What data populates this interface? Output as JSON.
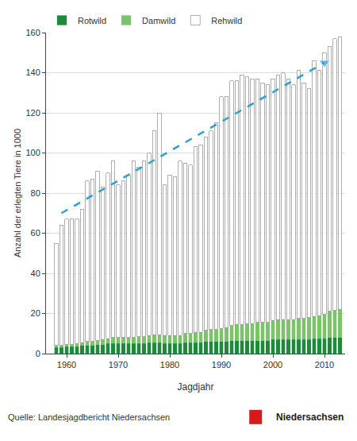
{
  "chart_data": {
    "type": "bar",
    "stacked": true,
    "x_label": "Jagdjahr",
    "y_label": "Anzahl der erlegten Tiere in 1000",
    "x": [
      1958,
      1959,
      1960,
      1961,
      1962,
      1963,
      1964,
      1965,
      1966,
      1967,
      1968,
      1969,
      1970,
      1971,
      1972,
      1973,
      1974,
      1975,
      1976,
      1977,
      1978,
      1979,
      1980,
      1981,
      1982,
      1983,
      1984,
      1985,
      1986,
      1987,
      1988,
      1989,
      1990,
      1991,
      1992,
      1993,
      1994,
      1995,
      1996,
      1997,
      1998,
      1999,
      2000,
      2001,
      2002,
      2003,
      2004,
      2005,
      2006,
      2007,
      2008,
      2009,
      2010,
      2011,
      2012,
      2013
    ],
    "series": [
      {
        "name": "Rotwild",
        "color": "#1e8a3c",
        "values": [
          3,
          3,
          3.5,
          3.5,
          3.5,
          4,
          4,
          4,
          4.5,
          4.5,
          5,
          5,
          5,
          5,
          5,
          5,
          5,
          5,
          5.5,
          5.5,
          5.5,
          5,
          5,
          5,
          5,
          5.5,
          5.5,
          5.5,
          5.5,
          6,
          6,
          6,
          6,
          6,
          6.5,
          6.5,
          6.5,
          6.5,
          6.5,
          6.5,
          6.5,
          6.5,
          7,
          7,
          7,
          7,
          7,
          7,
          7,
          7,
          7.5,
          7.5,
          7.5,
          8,
          8,
          8
        ]
      },
      {
        "name": "Damwild",
        "color": "#7dc36b",
        "values": [
          1,
          1,
          1,
          1,
          1.5,
          1.5,
          2,
          2,
          2,
          2.5,
          2.5,
          3,
          3,
          3,
          3,
          3,
          3.5,
          3.5,
          3.5,
          4,
          4,
          4,
          4,
          4,
          4,
          4.5,
          4.5,
          5,
          5,
          5.5,
          6,
          6,
          6.5,
          7,
          7.5,
          8,
          8,
          8.5,
          8.5,
          9,
          9,
          9,
          9.5,
          10,
          10,
          10,
          10,
          10.5,
          10.5,
          11,
          11,
          11.5,
          12,
          13,
          13.5,
          14
        ]
      },
      {
        "name": "Rehwild",
        "color": "#ffffff",
        "values": [
          51,
          60,
          62.5,
          62.5,
          62,
          66.5,
          80,
          81,
          84.5,
          76,
          82.5,
          88,
          76,
          78,
          81,
          88,
          84.5,
          87.5,
          91,
          101.5,
          110.5,
          75,
          80,
          79,
          87,
          85,
          84,
          92.5,
          93.5,
          96.5,
          99,
          103,
          115.5,
          115,
          122,
          121.5,
          124.5,
          123,
          122,
          121.5,
          119.5,
          118.5,
          120.5,
          122,
          123,
          120,
          117,
          123.5,
          117.5,
          114,
          127.5,
          122,
          130.5,
          132,
          135.5,
          136
        ]
      }
    ],
    "trend": {
      "x": [
        1959,
        2010
      ],
      "values": [
        70,
        145
      ],
      "color": "#2b9fd6",
      "line_style": "dashed"
    },
    "xlim": [
      1956,
      2014
    ],
    "xticks": [
      1960,
      1970,
      1980,
      1990,
      2000,
      2010
    ],
    "ylim": [
      0,
      160
    ],
    "yticks": [
      0,
      20,
      40,
      60,
      80,
      100,
      120,
      140,
      160
    ],
    "grid": true,
    "legend": "top left",
    "annotations": [
      "Quelle: Landesjagdbericht Niedersachsen",
      "Niedersachsen"
    ]
  }
}
